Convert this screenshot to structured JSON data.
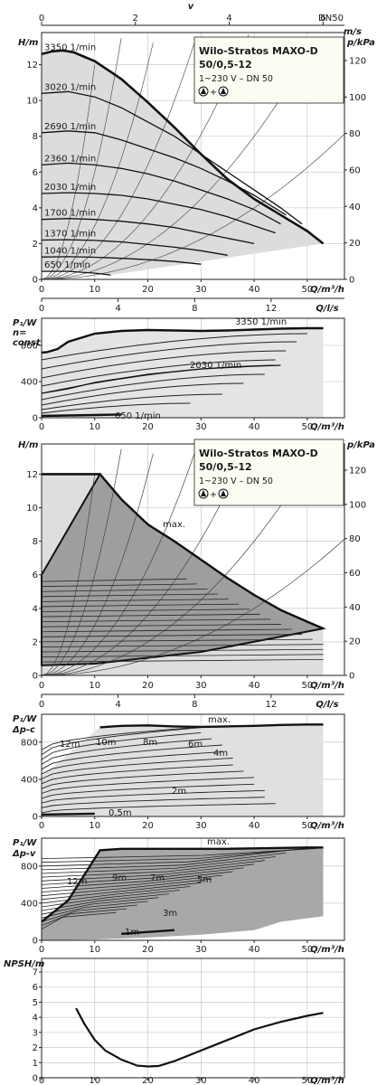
{
  "chart_data": [
    {
      "type": "line",
      "title": "Wilo-Stratos MAXO-D",
      "title_line2": "50/0,5-12",
      "subtitle": "1~230 V – DN 50",
      "top_axis": {
        "label": "v",
        "unit_label": "m/s",
        "extra": "DN50",
        "ticks": [
          "0",
          "2",
          "4",
          "6"
        ]
      },
      "ylabel": "H/m",
      "ylabel_right": "p/kPa",
      "xlabel": "Q/m³/h",
      "xlabel_top2": "Q/l/s",
      "x_ticks": [
        "0",
        "10",
        "20",
        "30",
        "40",
        "50"
      ],
      "ls_ticks": [
        "0",
        "4",
        "8",
        "12"
      ],
      "y_ticks": [
        "0",
        "2",
        "4",
        "6",
        "8",
        "10",
        "12"
      ],
      "y_right_ticks": [
        "0",
        "20",
        "40",
        "60",
        "80",
        "100",
        "120"
      ],
      "xlim": [
        0,
        57
      ],
      "ylim": [
        0,
        13.8
      ],
      "series": [
        {
          "name": "3350 1/min",
          "x": [
            0,
            2,
            4,
            6,
            10,
            15,
            20,
            25,
            30,
            35,
            40,
            45,
            50,
            53
          ],
          "y": [
            12.6,
            12.75,
            12.8,
            12.7,
            12.2,
            11.2,
            9.9,
            8.5,
            7.0,
            5.6,
            4.5,
            3.6,
            2.7,
            2.0
          ]
        },
        {
          "name": "3020 1/min",
          "x": [
            0,
            5,
            10,
            15,
            20,
            25,
            30,
            35,
            40,
            45,
            49
          ],
          "y": [
            10.4,
            10.5,
            10.2,
            9.6,
            8.8,
            8.0,
            7.0,
            6.0,
            5.0,
            4.0,
            3.1
          ]
        },
        {
          "name": "2690 1/min",
          "x": [
            0,
            5,
            10,
            15,
            20,
            25,
            30,
            35,
            40,
            46
          ],
          "y": [
            8.2,
            8.3,
            8.2,
            7.8,
            7.3,
            6.8,
            6.2,
            5.5,
            4.7,
            3.6
          ]
        },
        {
          "name": "2360 1/min",
          "x": [
            0,
            5,
            10,
            15,
            20,
            25,
            30,
            35,
            40,
            45
          ],
          "y": [
            6.4,
            6.5,
            6.4,
            6.2,
            5.9,
            5.5,
            5.0,
            4.5,
            3.9,
            3.1
          ]
        },
        {
          "name": "2030 1/min",
          "x": [
            0,
            5,
            10,
            15,
            20,
            25,
            30,
            35,
            40,
            44
          ],
          "y": [
            4.8,
            4.85,
            4.8,
            4.7,
            4.5,
            4.2,
            3.9,
            3.5,
            3.0,
            2.6
          ]
        },
        {
          "name": "1700 1/min",
          "x": [
            0,
            5,
            10,
            15,
            20,
            25,
            30,
            35,
            40
          ],
          "y": [
            3.35,
            3.4,
            3.35,
            3.25,
            3.1,
            2.9,
            2.6,
            2.3,
            2.0
          ]
        },
        {
          "name": "1370 1/min",
          "x": [
            0,
            5,
            10,
            15,
            20,
            25,
            30,
            35
          ],
          "y": [
            2.2,
            2.22,
            2.18,
            2.1,
            1.95,
            1.8,
            1.6,
            1.35
          ]
        },
        {
          "name": "1040 1/min",
          "x": [
            0,
            5,
            10,
            15,
            20,
            25,
            30
          ],
          "y": [
            1.25,
            1.27,
            1.24,
            1.18,
            1.1,
            1.0,
            0.85
          ]
        },
        {
          "name": "650 1/min",
          "x": [
            0,
            5,
            10,
            13
          ],
          "y": [
            0.45,
            0.45,
            0.35,
            0.25
          ]
        }
      ]
    },
    {
      "type": "line",
      "ylabel": "P₁/W",
      "ylabel2": "n=",
      "ylabel3": "const",
      "xlabel": "Q/m³/h",
      "x_ticks": [
        "0",
        "10",
        "20",
        "30",
        "40",
        "50"
      ],
      "y_ticks": [
        "0",
        "400",
        "800"
      ],
      "xlim": [
        0,
        57
      ],
      "ylim": [
        0,
        1100
      ],
      "series": [
        {
          "name": "3350 1/min",
          "x": [
            0,
            1,
            3,
            5,
            10,
            15,
            20,
            25,
            30,
            35,
            40,
            45,
            50,
            53
          ],
          "y": [
            720,
            725,
            760,
            840,
            930,
            960,
            970,
            965,
            960,
            965,
            975,
            985,
            990,
            990
          ]
        },
        {
          "name": "2030 1/min",
          "x": [
            0,
            5,
            10,
            20,
            30,
            40,
            45
          ],
          "y": [
            270,
            320,
            390,
            480,
            540,
            570,
            580
          ]
        },
        {
          "name": "650 1/min",
          "x": [
            0,
            5,
            10,
            15
          ],
          "y": [
            20,
            25,
            30,
            35
          ]
        }
      ]
    },
    {
      "type": "area",
      "title": "Wilo-Stratos MAXO-D",
      "title_line2": "50/0,5-12",
      "subtitle": "1~230 V – DN 50",
      "ylabel": "H/m",
      "ylabel_right": "p/kPa",
      "xlabel": "Q/m³/h",
      "xlabel2": "Q/l/s",
      "x_ticks": [
        "0",
        "10",
        "20",
        "30",
        "40",
        "50"
      ],
      "ls_ticks": [
        "0",
        "4",
        "8",
        "12"
      ],
      "y_ticks": [
        "0",
        "2",
        "4",
        "6",
        "8",
        "10",
        "12"
      ],
      "y_right_ticks": [
        "0",
        "20",
        "40",
        "60",
        "80",
        "100",
        "120"
      ],
      "annotation": "max.",
      "xlim": [
        0,
        57
      ],
      "ylim": [
        0,
        13.8
      ],
      "series": [
        {
          "name": "max.",
          "x": [
            0,
            11,
            15,
            20,
            25,
            30,
            35,
            40,
            45,
            50,
            53
          ],
          "y": [
            12,
            12,
            10.5,
            9,
            8,
            6.9,
            5.8,
            4.8,
            3.9,
            3.2,
            2.8
          ]
        }
      ]
    },
    {
      "type": "line",
      "ylabel": "P₁/W",
      "ylabel2": "Δp-c",
      "xlabel": "Q/m³/h",
      "x_ticks": [
        "0",
        "10",
        "20",
        "30",
        "40",
        "50"
      ],
      "y_ticks": [
        "0",
        "400",
        "800"
      ],
      "annotations": [
        "max.",
        "12m",
        "10m",
        "8m",
        "6m",
        "4m",
        "2m",
        "0,5m"
      ],
      "xlim": [
        0,
        57
      ],
      "ylim": [
        0,
        1100
      ],
      "series": [
        {
          "name": "max.",
          "x": [
            11,
            15,
            20,
            25,
            30,
            35,
            40,
            45,
            50,
            53
          ],
          "y": [
            960,
            975,
            980,
            970,
            965,
            970,
            975,
            985,
            990,
            990
          ]
        }
      ]
    },
    {
      "type": "line",
      "ylabel": "P₁/W",
      "ylabel2": "Δp-v",
      "xlabel": "Q/m³/h",
      "x_ticks": [
        "0",
        "10",
        "20",
        "30",
        "40",
        "50"
      ],
      "y_ticks": [
        "0",
        "400",
        "800"
      ],
      "annotations": [
        "max.",
        "12m",
        "9m",
        "7m",
        "5m",
        "3m",
        "1m"
      ],
      "xlim": [
        0,
        57
      ],
      "ylim": [
        0,
        1100
      ],
      "series": [
        {
          "name": "max.",
          "x": [
            0,
            5,
            11,
            15,
            20,
            25,
            30,
            35,
            40,
            45,
            50,
            53
          ],
          "y": [
            200,
            430,
            970,
            985,
            985,
            985,
            985,
            985,
            990,
            995,
            1000,
            1000
          ]
        }
      ]
    },
    {
      "type": "line",
      "ylabel": "NPSH/m",
      "xlabel": "Q/m³/h",
      "x_ticks": [
        "0",
        "10",
        "20",
        "30",
        "40",
        "50"
      ],
      "y_ticks": [
        "0",
        "1",
        "2",
        "3",
        "4",
        "5",
        "6",
        "7"
      ],
      "xlim": [
        0,
        57
      ],
      "ylim": [
        0,
        7.9
      ],
      "series": [
        {
          "x": [
            6.5,
            8,
            10,
            12,
            15,
            18,
            20,
            22,
            25,
            30,
            35,
            40,
            45,
            50,
            53
          ],
          "y": [
            4.6,
            3.6,
            2.5,
            1.8,
            1.2,
            0.8,
            0.75,
            0.78,
            1.1,
            1.8,
            2.5,
            3.2,
            3.7,
            4.1,
            4.3
          ]
        }
      ]
    }
  ]
}
